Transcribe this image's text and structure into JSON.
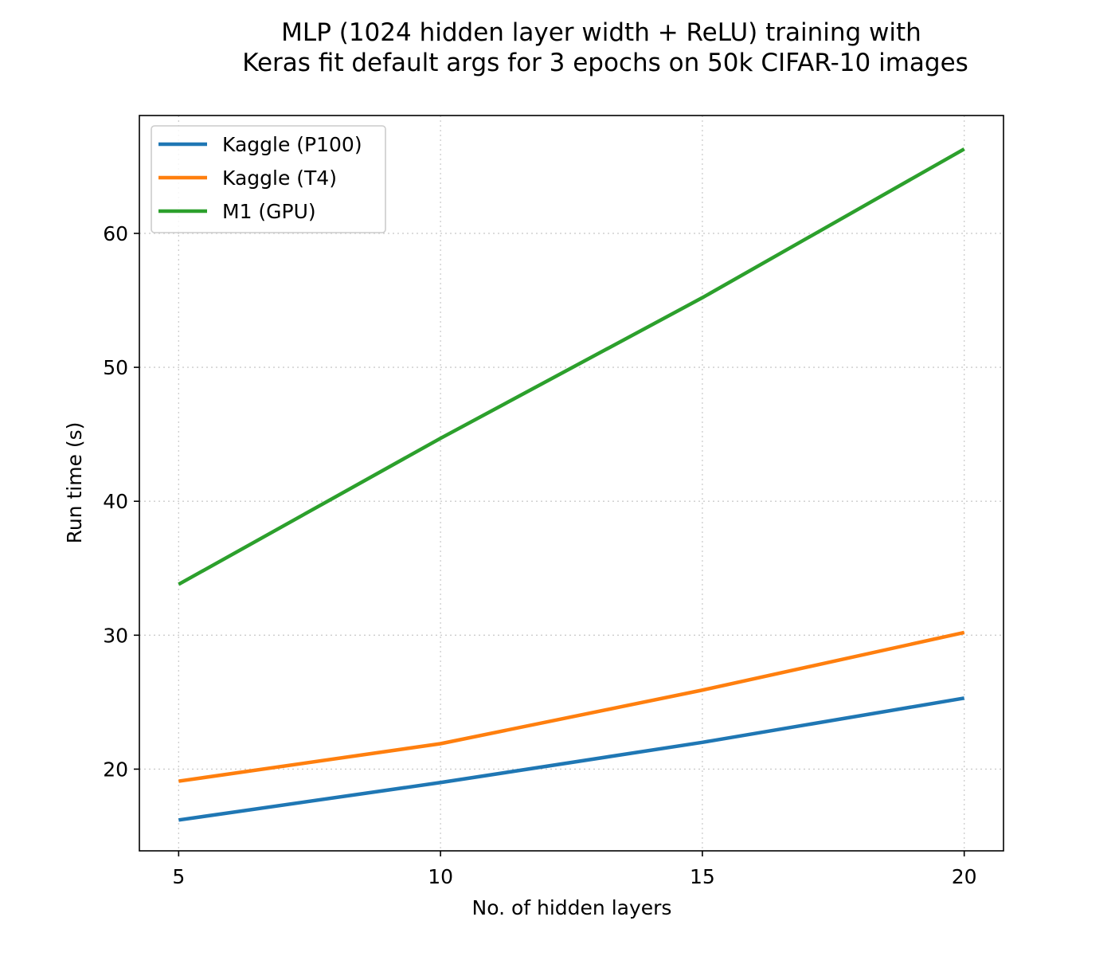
{
  "chart_data": {
    "type": "line",
    "title_lines": [
      "MLP (1024 hidden layer width + ReLU) training with",
      "Keras fit default args for 3 epochs on 50k CIFAR-10 images"
    ],
    "xlabel": "No. of hidden layers",
    "ylabel": "Run time (s)",
    "x": [
      5,
      10,
      15,
      20
    ],
    "xticks": [
      "5",
      "10",
      "15",
      "20"
    ],
    "yticks": [
      "20",
      "30",
      "40",
      "50",
      "60"
    ],
    "xlim": [
      4.25,
      20.75
    ],
    "ylim": [
      13.9,
      68.8
    ],
    "grid": true,
    "legend_position": "upper-left",
    "series": [
      {
        "name": "Kaggle (P100)",
        "color": "#1f77b4",
        "values": [
          16.2,
          19.0,
          22.0,
          25.3
        ]
      },
      {
        "name": "Kaggle (T4)",
        "color": "#ff7f0e",
        "values": [
          19.1,
          21.9,
          25.9,
          30.2
        ]
      },
      {
        "name": "M1 (GPU)",
        "color": "#2ca02c",
        "values": [
          33.8,
          44.7,
          55.2,
          66.3
        ]
      }
    ]
  }
}
